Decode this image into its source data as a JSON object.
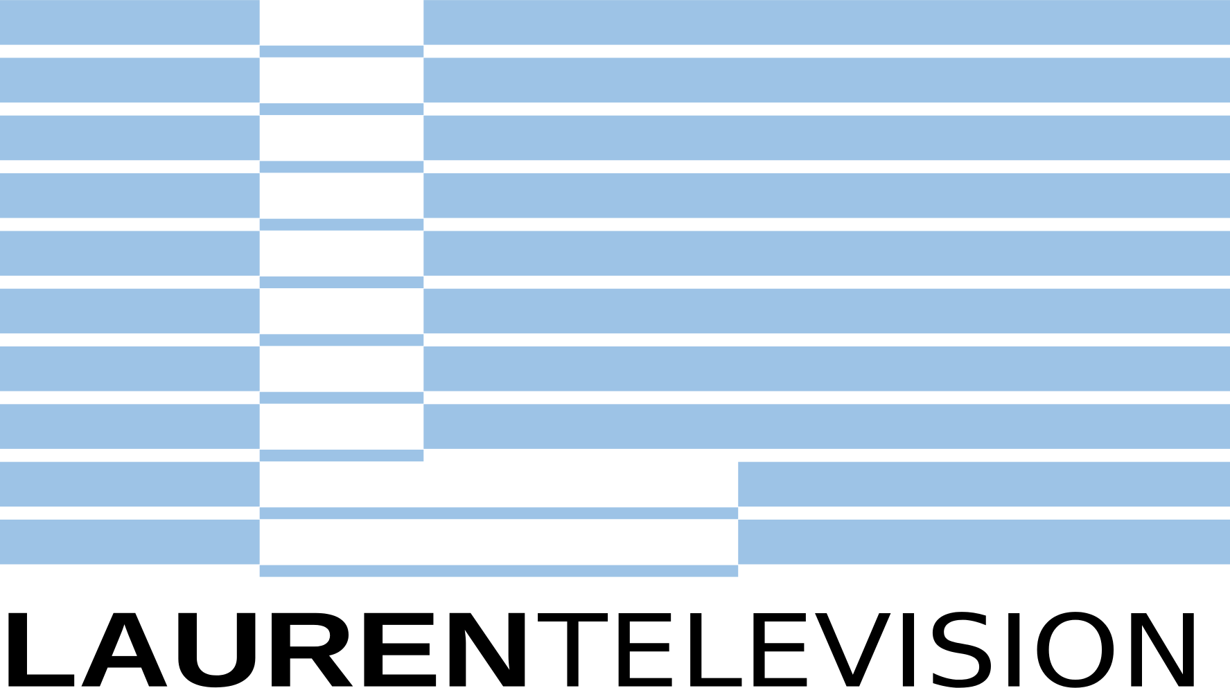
{
  "logo": {
    "name": "LAUREN",
    "suffix": "TELEVISION"
  }
}
